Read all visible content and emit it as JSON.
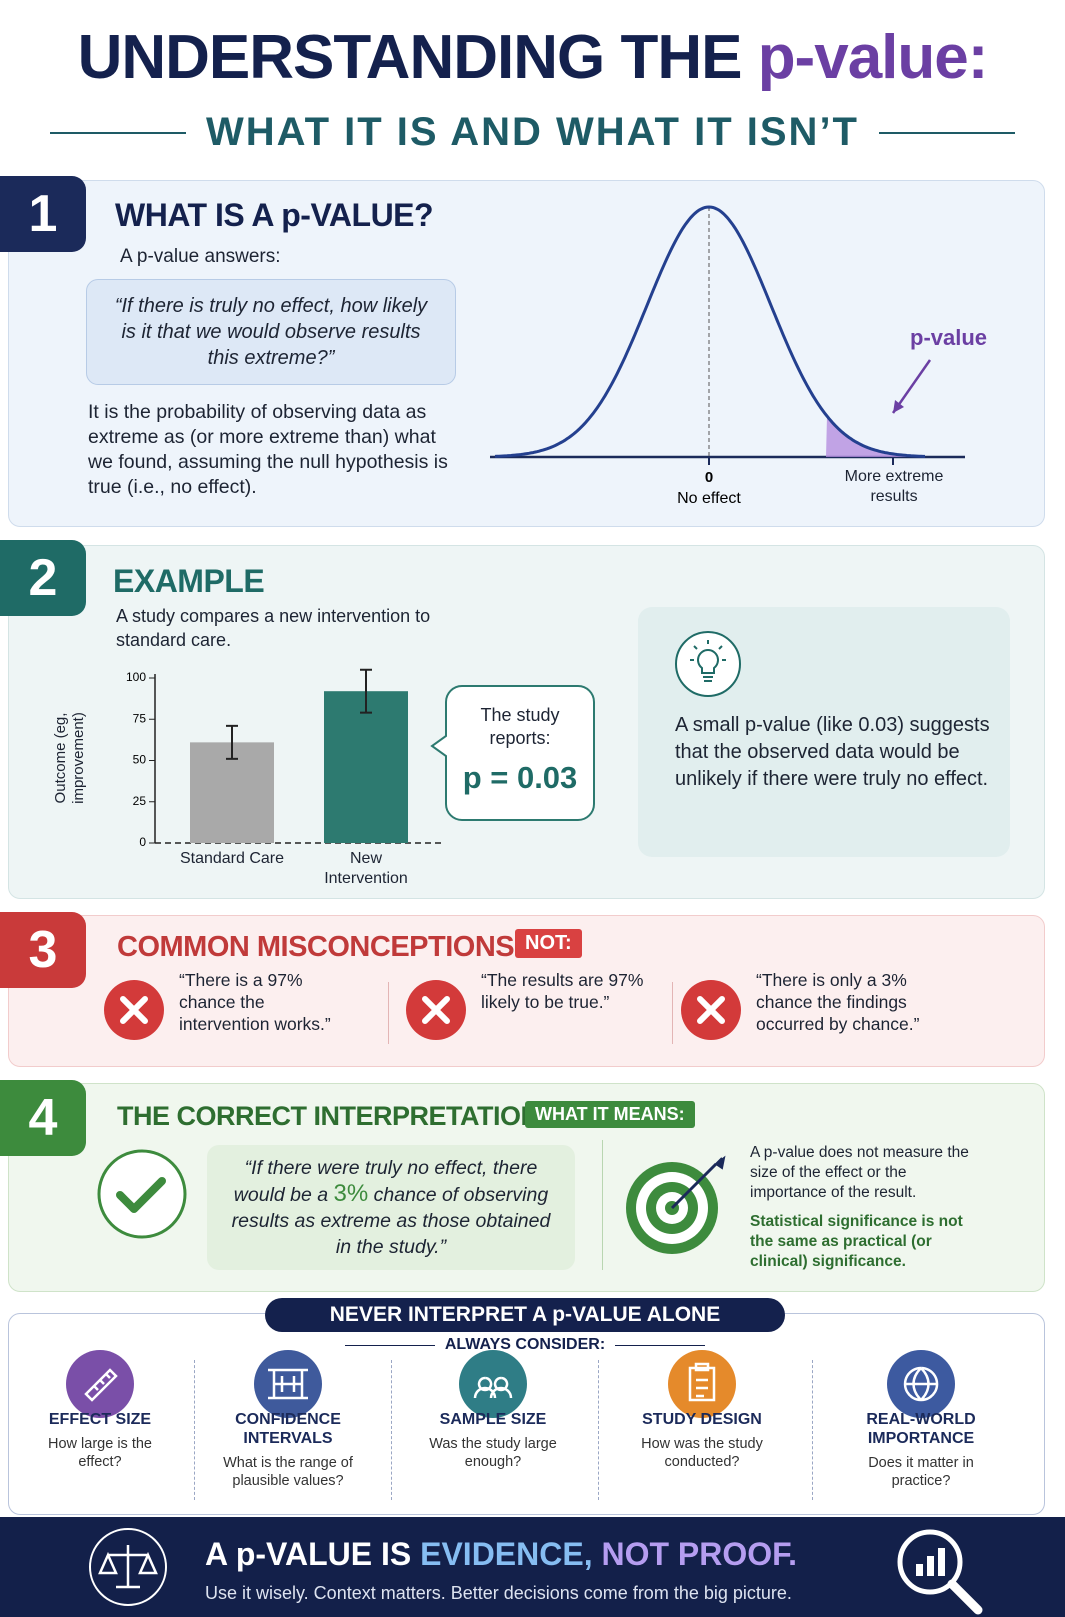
{
  "header": {
    "title_a": "UNDERSTANDING THE",
    "title_b": "p-value:",
    "subtitle": "WHAT IT IS AND WHAT IT ISN’T"
  },
  "section1": {
    "number": "1",
    "heading": "WHAT IS A p-VALUE?",
    "intro": "A p-value answers:",
    "quote": "“If there is truly no effect, how likely is it that we would observe results this extreme?”",
    "body": "It is the probability of observing data as extreme as (or more extreme than) what we found, assuming the null hypothesis is true (i.e., no effect).",
    "curve": {
      "label": "p-value",
      "zero": "0",
      "zero_caption": "No effect",
      "tail_caption": "More extreme results"
    }
  },
  "section2": {
    "number": "2",
    "heading": "EXAMPLE",
    "intro": "A study compares a new intervention to standard care.",
    "chart": {
      "type": "bar",
      "y_label": "Outcome (eg, improvement)",
      "categories": [
        "Standard Care",
        "New Intervention"
      ],
      "values": [
        61,
        92
      ],
      "errors": [
        10,
        13
      ],
      "colors": [
        "#a9a9a9",
        "#2d7a70"
      ],
      "ylim": [
        0,
        100
      ],
      "yticks": [
        0,
        25,
        50,
        75,
        100
      ]
    },
    "callout": {
      "text": "The study reports:",
      "p": "p = 0.03"
    },
    "note": "A small p-value (like 0.03) suggests that the observed data would be unlikely if there were truly no effect."
  },
  "section3": {
    "number": "3",
    "heading": "COMMON MISCONCEPTIONS",
    "badge": "NOT:",
    "items": [
      "“There is a 97% chance the intervention works.”",
      "“The results are 97% likely to be true.”",
      "“There is only a 3% chance the findings occurred by chance.”"
    ]
  },
  "section4": {
    "number": "4",
    "heading": "THE CORRECT INTERPRETATION",
    "badge": "WHAT IT MEANS:",
    "quote_a": "“If there were truly no effect, there would be a",
    "quote_pct": "3%",
    "quote_b": "chance of observing results as extreme as those obtained in the study.”",
    "note": "A p-value does not measure the size of the effect or the importance of the result.",
    "note_bold": "Statistical significance is not the same as practical (or clinical) significance."
  },
  "consider": {
    "banner": "NEVER INTERPRET A p-VALUE ALONE",
    "subheading": "ALWAYS CONSIDER:",
    "items": [
      {
        "title": "EFFECT SIZE",
        "question": "How large is the effect?"
      },
      {
        "title": "CONFIDENCE INTERVALS",
        "question": "What is the range of plausible values?"
      },
      {
        "title": "SAMPLE SIZE",
        "question": "Was the study large enough?"
      },
      {
        "title": "STUDY DESIGN",
        "question": "How was the study conducted?"
      },
      {
        "title": "REAL-WORLD IMPORTANCE",
        "question": "Does it matter in practice?"
      }
    ]
  },
  "footer": {
    "headline_a": "A p-VALUE IS",
    "headline_b": "EVIDENCE,",
    "headline_c": "NOT PROOF.",
    "tagline": "Use it wisely. Context matters. Better decisions come from the big picture."
  }
}
